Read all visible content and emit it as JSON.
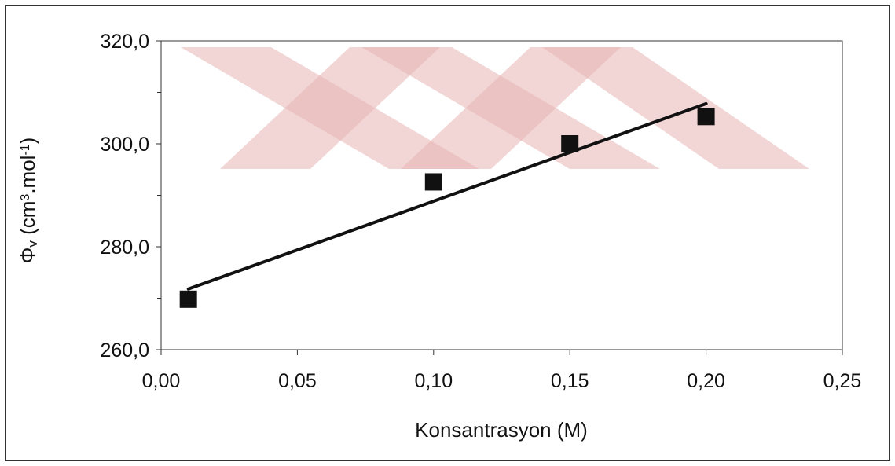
{
  "chart_data": {
    "type": "scatter",
    "title": "",
    "xlabel": "Konsantrasyon (M)",
    "ylabel_parts": {
      "phi": "Φ",
      "phi_sub": "v",
      "open": " (cm",
      "sup1": "3",
      "mid": ".mol",
      "sup2": "-1",
      "close": ")"
    },
    "xlim": [
      0.0,
      0.25
    ],
    "ylim": [
      260.0,
      320.0
    ],
    "x_ticks": [
      0.0,
      0.05,
      0.1,
      0.15,
      0.2,
      0.25
    ],
    "x_tick_labels": [
      "0,00",
      "0,05",
      "0,10",
      "0,15",
      "0,20",
      "0,25"
    ],
    "y_ticks": [
      260.0,
      280.0,
      300.0,
      320.0
    ],
    "y_tick_labels": [
      "260,0",
      "280,0",
      "300,0",
      "320,0"
    ],
    "y_minor_ticks": [
      270.0,
      290.0,
      310.0
    ],
    "grid": false,
    "legend": "none",
    "marker": "square",
    "marker_color": "#111111",
    "line_color": "#111111",
    "watermark_color": "#e8b4b4",
    "series": [
      {
        "x": [
          0.01,
          0.1,
          0.15,
          0.2
        ],
        "y": [
          269.8,
          292.6,
          300.0,
          305.3
        ]
      }
    ],
    "trendline": {
      "x": [
        0.01,
        0.2
      ],
      "y": [
        271.8,
        307.8
      ]
    }
  }
}
